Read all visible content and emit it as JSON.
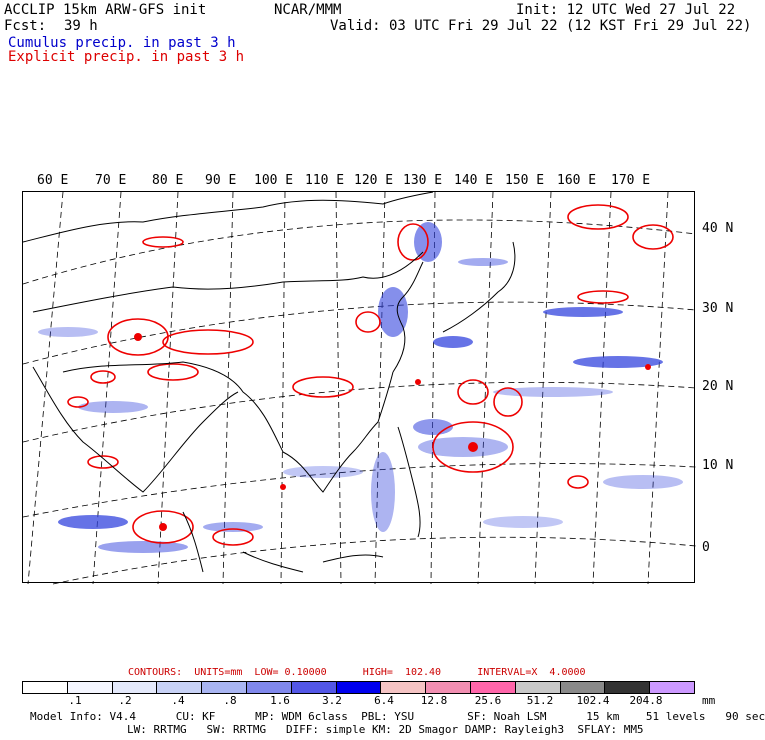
{
  "header": {
    "left_line1": "ACCLIP 15km ARW-GFS init",
    "center_line1": "NCAR/MMM",
    "right_line1": "Init: 12 UTC Wed 27 Jul 22",
    "fcst_label": "Fcst:",
    "fcst_value": "39 h",
    "valid": "Valid: 03 UTC Fri 29 Jul 22 (12 KST Fri 29 Jul 22)",
    "cumulus_label": "Cumulus precip. in past 3 h",
    "explicit_label": "Explicit precip. in past 3 h"
  },
  "map": {
    "longitude_labels": [
      "60 E",
      "70 E",
      "80 E",
      "90 E",
      "100 E",
      "110 E",
      "120 E",
      "130 E",
      "140 E",
      "150 E",
      "160 E",
      "170 E"
    ],
    "latitude_labels": [
      "40 N",
      "30 N",
      "20 N",
      "10 N",
      "0"
    ],
    "colors": {
      "coast": "#000000",
      "grid": "#000000",
      "cumulus": "#3344dd",
      "explicit": "#ee0000"
    }
  },
  "contours": {
    "line": "CONTOURS:  UNITS=mm  LOW= 0.10000      HIGH=  102.40      INTERVAL=X  4.0000"
  },
  "colorbar": {
    "colors": [
      "#ffffff",
      "#f4f6ff",
      "#e4e9fb",
      "#c8d2f6",
      "#a9b5f2",
      "#8088ec",
      "#5357e6",
      "#0000ee",
      "#f5c4c4",
      "#f28fb2",
      "#ff66aa",
      "#c8c8c8",
      "#8a8a8a",
      "#333333",
      "#cc99ff"
    ],
    "ticks": [
      ".1",
      ".2",
      ".4",
      ".8",
      "1.6",
      "3.2",
      "6.4",
      "12.8",
      "25.6",
      "51.2",
      "102.4",
      "204.8"
    ],
    "unit": "mm"
  },
  "footer": {
    "line1": "Model Info: V4.4      CU: KF      MP: WDM 6class  PBL: YSU        SF: Noah LSM      15 km    51 levels   90 sec",
    "line2": "LW: RRTMG   SW: RRTMG   DIFF: simple KM: 2D Smagor DAMP: Rayleigh3  SFLAY: MM5"
  }
}
